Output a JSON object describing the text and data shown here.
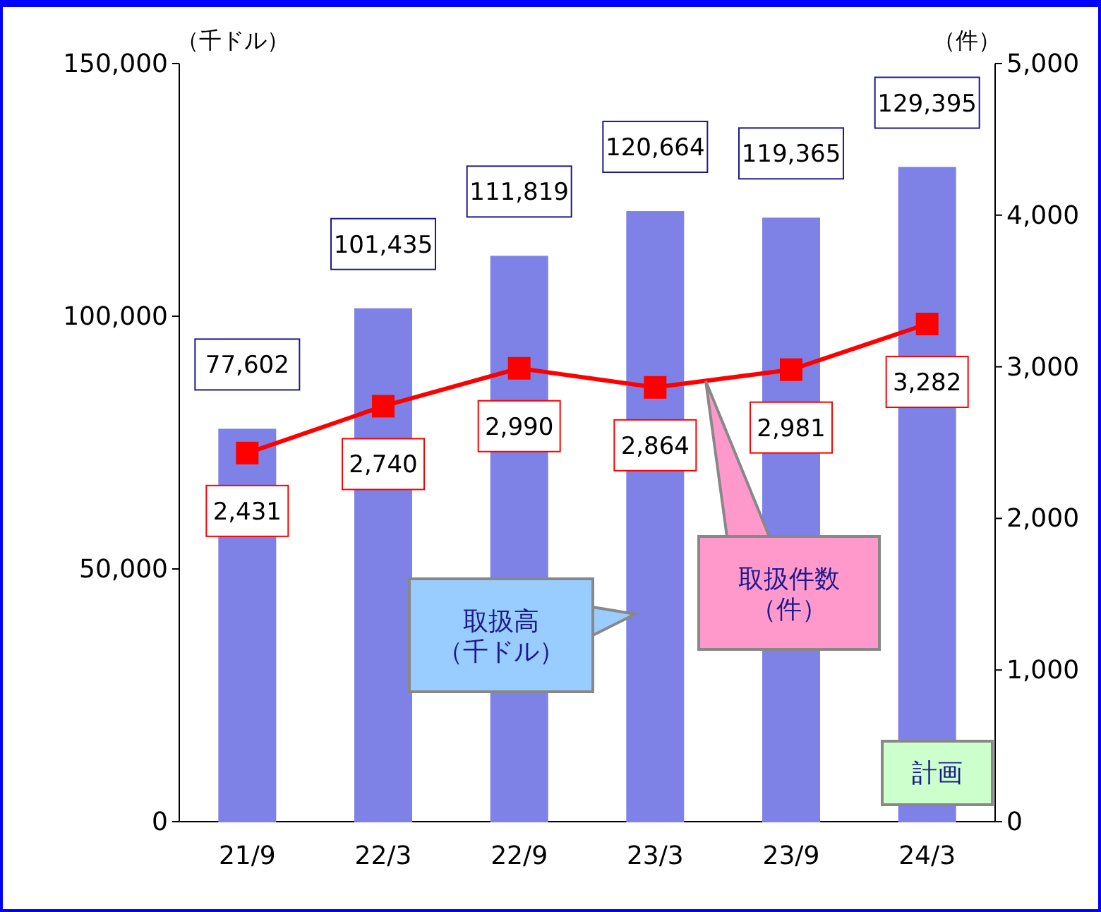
{
  "chart_data": {
    "type": "bar",
    "categories": [
      "21/9",
      "22/3",
      "22/9",
      "23/3",
      "23/9",
      "24/3"
    ],
    "ylabel": "（千ドル）",
    "y2label": "（件）",
    "ylim": [
      0,
      150000
    ],
    "yticks": [
      {
        "value": 0,
        "label": "0"
      },
      {
        "value": 50000,
        "label": "50,000"
      },
      {
        "value": 100000,
        "label": "100,000"
      },
      {
        "value": 150000,
        "label": "150,000"
      }
    ],
    "y2lim": [
      0,
      5000
    ],
    "y2ticks": [
      {
        "value": 0,
        "label": "0"
      },
      {
        "value": 1000,
        "label": "1,000"
      },
      {
        "value": 2000,
        "label": "2,000"
      },
      {
        "value": 3000,
        "label": "3,000"
      },
      {
        "value": 4000,
        "label": "4,000"
      },
      {
        "value": 5000,
        "label": "5,000"
      }
    ],
    "series": [
      {
        "color": "#7e82e6",
        "values": [
          77602,
          101435,
          111819,
          120664,
          119365,
          129395
        ],
        "value_labels": [
          "77,602",
          "101,435",
          "111,819",
          "120,664",
          "119,365",
          "129,395"
        ]
      },
      {
        "type": "line",
        "axis": "y2",
        "color": "#ff0000",
        "values": [
          2431,
          2740,
          2990,
          2864,
          2981,
          3282
        ],
        "value_labels": [
          "2,431",
          "2,740",
          "2,990",
          "2,864",
          "2,981",
          "3,282"
        ]
      }
    ],
    "marker": "square",
    "grid": false,
    "annotations": [
      "取扱高（千ドル）",
      "取扱件数（件）",
      "計画"
    ]
  }
}
